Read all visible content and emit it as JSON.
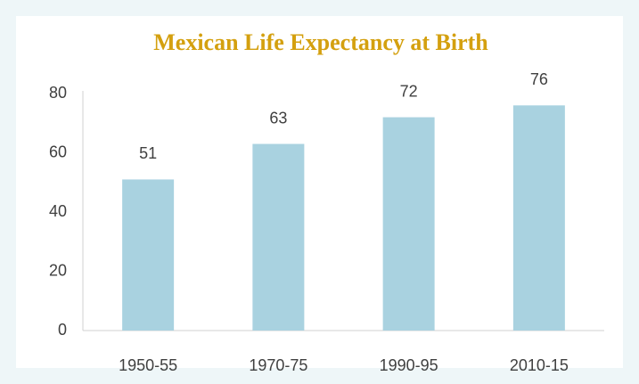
{
  "chart_data": {
    "type": "bar",
    "title": "Mexican Life Expectancy at Birth",
    "categories": [
      "1950-55",
      "1970-75",
      "1990-95",
      "2010-15"
    ],
    "values": [
      51,
      63,
      72,
      76
    ],
    "color": "#a9d2e0",
    "ylim": [
      0,
      80
    ],
    "yticks": [
      0,
      20,
      40,
      60,
      80
    ],
    "grid": false,
    "data_labels": true
  }
}
